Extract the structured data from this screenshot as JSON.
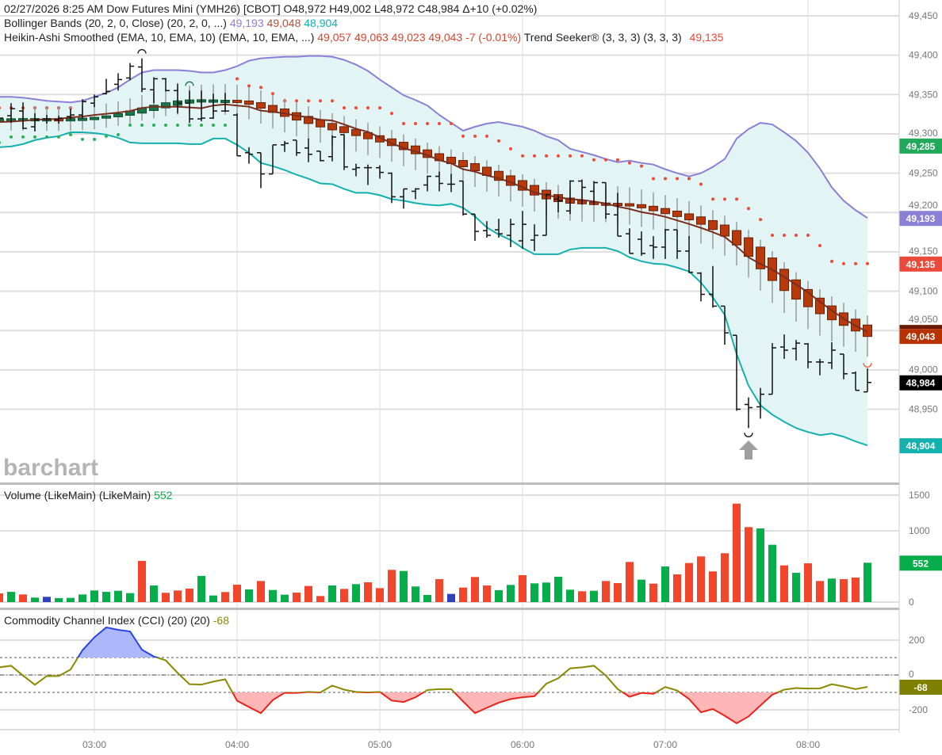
{
  "header": {
    "line1": "02/27/2026  8:25 AM Dow Futures Mini (YMH26) [CBOT] O48,972 H49,002 L48,972 C48,984 Δ+10 (+0.02%)",
    "bb_label": "Bollinger Bands (20, 2, 0, Close)  (20, 2, 0, ...)",
    "bb_upper": "49,193",
    "bb_middle": "49,048",
    "bb_lower": "48,904",
    "ha_label": "Heikin-Ashi Smoothed (EMA, 10, EMA, 10)  (EMA, 10, EMA, ...)",
    "ha_values": "49,057 49,063 49,023 49,043 -7 (-0.01%)",
    "ts_label": "Trend Seeker® (3, 3, 3)  (3, 3, 3)",
    "ts_value": "49,135"
  },
  "volume_header": {
    "label": "Volume (LikeMain)  (LikeMain)",
    "value": "552"
  },
  "cci_header": {
    "label": "Commodity Channel Index (CCI) (20)  (20)",
    "value": "-68"
  },
  "watermark": "barchart",
  "colors": {
    "bb_upper": "#8b7fd6",
    "bb_middle": "#7a2e1e",
    "bb_lower": "#14b0ad",
    "bb_fill": "#e3f4f4",
    "ha_up": "#17784a",
    "ha_down": "#b83a0c",
    "ts_up": "#28b35a",
    "ts_down": "#ef4a36",
    "vol_up": "#08ad4b",
    "vol_down": "#f1452c",
    "vol_flat": "#2e43b8",
    "cci_line": "#8a8a00",
    "cci_over": "#2a44e6",
    "cci_over_fill": "#adb8fa",
    "cci_under": "#e8231d",
    "cci_under_fill": "#ffb6b6"
  },
  "chart_data": [
    {
      "type": "ohlc",
      "title": "Dow Futures Mini (YMH26) [CBOT]",
      "interval": "5 min",
      "x_start": "02:20",
      "x_end": "08:25",
      "x_ticks": [
        "03:00",
        "04:00",
        "05:00",
        "06:00",
        "07:00",
        "08:00"
      ],
      "y_ticks": [
        "49,450",
        "49,400",
        "49,350",
        "49,300",
        "49,250",
        "49,200",
        "49,150",
        "49,100",
        "49,050",
        "49,000",
        "48,950"
      ],
      "ylim": [
        48900,
        49450
      ],
      "ohlc": [
        [
          49318,
          49328,
          49310,
          49320
        ],
        [
          49323,
          49339,
          49314,
          49332
        ],
        [
          49329,
          49340,
          49306,
          49307
        ],
        [
          49309,
          49326,
          49303,
          49318
        ],
        [
          49319,
          49324,
          49313,
          49319
        ],
        [
          49318,
          49323,
          49313,
          49320
        ],
        [
          49322,
          49332,
          49318,
          49324
        ],
        [
          49324,
          49344,
          49319,
          49341
        ],
        [
          49339,
          49350,
          49334,
          49347
        ],
        [
          49351,
          49370,
          49350,
          49354
        ],
        [
          49363,
          49377,
          49355,
          49369
        ],
        [
          49371,
          49390,
          49368,
          49386
        ],
        [
          49385,
          49396,
          49353,
          49357
        ],
        [
          49356,
          49372,
          49339,
          49370
        ],
        [
          49370,
          49371,
          49354,
          49355
        ],
        [
          49355,
          49364,
          49326,
          49339
        ],
        [
          49339,
          49355,
          49314,
          49319
        ],
        [
          49319,
          49355,
          49316,
          49320
        ],
        [
          49320,
          49351,
          49319,
          49329
        ],
        [
          49329,
          49352,
          49328,
          49329
        ],
        [
          49324,
          49326,
          49272,
          49272
        ],
        [
          49276,
          49283,
          49262,
          49274
        ],
        [
          49276,
          49276,
          49231,
          49249
        ],
        [
          49249,
          49286,
          49249,
          49286
        ],
        [
          49286,
          49291,
          49277,
          49288
        ],
        [
          49292,
          49292,
          49272,
          49276
        ],
        [
          49282,
          49294,
          49264,
          49274
        ],
        [
          49278,
          49278,
          49265,
          49266
        ],
        [
          49271,
          49298,
          49265,
          49296
        ],
        [
          49299,
          49299,
          49254,
          49258
        ],
        [
          49255,
          49262,
          49246,
          49257
        ],
        [
          49257,
          49261,
          49235,
          49257
        ],
        [
          49257,
          49260,
          49243,
          49251
        ],
        [
          49250,
          49251,
          49212,
          49220
        ],
        [
          49220,
          49230,
          49205,
          49230
        ],
        [
          49227,
          49231,
          49217,
          49230
        ],
        [
          49235,
          49247,
          49227,
          49246
        ],
        [
          49246,
          49252,
          49227,
          49237
        ],
        [
          49236,
          49249,
          49226,
          49236
        ],
        [
          49240,
          49240,
          49196,
          49198
        ],
        [
          49198,
          49198,
          49164,
          49176
        ],
        [
          49177,
          49189,
          49168,
          49171
        ],
        [
          49178,
          49192,
          49168,
          49173
        ],
        [
          49171,
          49192,
          49156,
          49185
        ],
        [
          49164,
          49202,
          49154,
          49185
        ],
        [
          49165,
          49185,
          49151,
          49171
        ],
        [
          49171,
          49224,
          49171,
          49223
        ],
        [
          49217,
          49222,
          49200,
          49215
        ],
        [
          49202,
          49241,
          49198,
          49240
        ],
        [
          49240,
          49242,
          49210,
          49232
        ],
        [
          49227,
          49240,
          49210,
          49238
        ],
        [
          49238,
          49238,
          49192,
          49198
        ],
        [
          49197,
          49225,
          49170,
          49170
        ],
        [
          49173,
          49180,
          49148,
          49148
        ],
        [
          49166,
          49176,
          49145,
          49148
        ],
        [
          49158,
          49170,
          49141,
          49156
        ],
        [
          49156,
          49179,
          49141,
          49178
        ],
        [
          49178,
          49178,
          49141,
          49151
        ],
        [
          49151,
          49170,
          49123,
          49124
        ],
        [
          49123,
          49124,
          49087,
          49096
        ],
        [
          49096,
          49132,
          49079,
          49081
        ],
        [
          49081,
          49081,
          49032,
          49047
        ],
        [
          49044,
          49044,
          48948,
          48950
        ],
        [
          48956,
          48965,
          48926,
          48952
        ],
        [
          48953,
          48977,
          48938,
          48969
        ],
        [
          48969,
          49034,
          48969,
          49028
        ],
        [
          49029,
          49045,
          49014,
          49025
        ],
        [
          49027,
          49038,
          49012,
          49034
        ],
        [
          49033,
          49034,
          49002,
          49010
        ],
        [
          49010,
          49014,
          48993,
          49010
        ],
        [
          49009,
          49035,
          49001,
          49025
        ],
        [
          49020,
          49020,
          48988,
          48995
        ],
        [
          48996,
          48998,
          48974,
          48974
        ],
        [
          48972,
          49002,
          48972,
          48984
        ]
      ],
      "bollinger_upper": [
        49347,
        49347,
        49346,
        49344,
        49342,
        49341,
        49340,
        49342,
        49347,
        49352,
        49359,
        49369,
        49378,
        49381,
        49381,
        49381,
        49380,
        49378,
        49378,
        49381,
        49386,
        49393,
        49396,
        49397,
        49398,
        49398,
        49399,
        49399,
        49398,
        49394,
        49388,
        49380,
        49369,
        49359,
        49349,
        49343,
        49336,
        49324,
        49314,
        49304,
        49309,
        49313,
        49315,
        49312,
        49309,
        49304,
        49297,
        49292,
        49281,
        49277,
        49273,
        49268,
        49264,
        49266,
        49263,
        49261,
        49255,
        49250,
        49246,
        49250,
        49258,
        49268,
        49294,
        49306,
        49314,
        49312,
        49302,
        49291,
        49276,
        49256,
        49232,
        49215,
        49203,
        49193
      ],
      "bollinger_lower": [
        49283,
        49284,
        49287,
        49292,
        49295,
        49297,
        49302,
        49302,
        49301,
        49299,
        49295,
        49289,
        49288,
        49288,
        49288,
        49288,
        49287,
        49287,
        49294,
        49294,
        49286,
        49276,
        49263,
        49259,
        49254,
        49248,
        49243,
        49237,
        49236,
        49230,
        49225,
        49225,
        49222,
        49217,
        49215,
        49212,
        49210,
        49209,
        49211,
        49206,
        49195,
        49181,
        49172,
        49165,
        49155,
        49147,
        49147,
        49147,
        49153,
        49155,
        49155,
        49155,
        49151,
        49143,
        49138,
        49135,
        49134,
        49130,
        49125,
        49111,
        49092,
        49070,
        49020,
        48980,
        48955,
        48943,
        48934,
        48926,
        48921,
        48917,
        48919,
        48915,
        48909,
        48904
      ],
      "trend_seeker_down": [
        49333,
        49333,
        49333,
        49333,
        49333,
        49333,
        49333,
        null,
        null,
        null,
        null,
        null,
        null,
        null,
        null,
        null,
        null,
        null,
        null,
        null,
        49370,
        49361,
        49359,
        49351,
        49342,
        49342,
        49342,
        49342,
        49342,
        49333,
        49333,
        49333,
        49333,
        49326,
        49313,
        49313,
        49313,
        49313,
        49313,
        49297,
        49297,
        49297,
        49291,
        49281,
        49272,
        49272,
        49272,
        49272,
        49272,
        49272,
        49267,
        49267,
        49267,
        49263,
        49259,
        49243,
        49243,
        49243,
        49243,
        49236,
        49217,
        49217,
        49217,
        49205,
        49191,
        49171,
        49171,
        49171,
        49171,
        49158,
        49138,
        49135,
        49135,
        49135
      ],
      "trend_seeker_up": [
        49289,
        49296,
        49296,
        49296,
        49296,
        49296,
        49299,
        49293,
        49293,
        49297,
        49299,
        49311,
        49311,
        49311,
        49311,
        49311,
        49311,
        49311,
        49311,
        49311,
        null,
        null,
        null,
        null,
        null,
        null,
        null,
        null,
        null,
        null,
        null,
        null,
        null,
        null,
        null,
        null,
        null,
        null,
        null,
        null,
        null,
        null,
        null,
        null,
        null,
        null,
        null,
        null,
        null,
        null,
        null,
        null,
        null,
        null,
        null,
        null,
        null,
        null,
        null,
        null,
        null,
        null,
        null,
        null,
        null,
        null,
        null,
        null,
        null,
        null,
        null,
        null,
        null,
        null
      ],
      "last_value_badges": [
        {
          "value": "49,285",
          "price": 49285,
          "color": "#21a95a"
        },
        {
          "value": "49,193",
          "price": 49193,
          "color": "#8b7fd6"
        },
        {
          "value": "49,135",
          "price": 49135,
          "color": "#ea4a3a"
        },
        {
          "value": "49,043",
          "price": 49043,
          "color": "#b83200"
        },
        {
          "value": "48,984",
          "price": 48984,
          "color": "#000000"
        },
        {
          "value": "48,904",
          "price": 48904,
          "color": "#14b0ad"
        }
      ],
      "markers": {
        "swing_high_bars": [
          12,
          16
        ],
        "swing_low_bars": [
          63,
          73
        ],
        "arrow_up_bar": 63
      }
    },
    {
      "type": "bar",
      "title": "Volume (LikeMain)",
      "y_ticks": [
        "1500",
        "1000",
        "0"
      ],
      "ylim": [
        0,
        1500
      ],
      "values": [
        122,
        144,
        107,
        63,
        74,
        56,
        59,
        107,
        163,
        144,
        159,
        126,
        578,
        233,
        130,
        163,
        189,
        367,
        93,
        141,
        244,
        178,
        296,
        170,
        104,
        133,
        226,
        85,
        233,
        185,
        252,
        278,
        196,
        452,
        437,
        219,
        100,
        322,
        115,
        204,
        352,
        233,
        167,
        241,
        378,
        263,
        274,
        356,
        174,
        152,
        159,
        296,
        267,
        563,
        315,
        259,
        500,
        389,
        548,
        641,
        430,
        685,
        1381,
        1052,
        1033,
        804,
        515,
        411,
        544,
        296,
        330,
        322,
        344,
        552
      ],
      "directions": [
        "r",
        "g",
        "r",
        "g",
        "b",
        "g",
        "g",
        "g",
        "g",
        "g",
        "g",
        "g",
        "r",
        "g",
        "r",
        "r",
        "r",
        "g",
        "g",
        "r",
        "r",
        "g",
        "r",
        "g",
        "g",
        "r",
        "r",
        "r",
        "g",
        "r",
        "g",
        "r",
        "r",
        "r",
        "g",
        "g",
        "g",
        "r",
        "b",
        "r",
        "r",
        "r",
        "g",
        "g",
        "r",
        "g",
        "g",
        "g",
        "g",
        "r",
        "g",
        "r",
        "r",
        "r",
        "g",
        "r",
        "g",
        "r",
        "r",
        "r",
        "r",
        "r",
        "r",
        "r",
        "g",
        "g",
        "r",
        "g",
        "r",
        "r",
        "g",
        "r",
        "r",
        "g"
      ],
      "last_badge": "552"
    },
    {
      "type": "line",
      "title": "Commodity Channel Index (CCI) (20)",
      "y_ticks": [
        "200",
        "0",
        "-200"
      ],
      "ylim": [
        -310,
        350
      ],
      "levels": [
        100,
        0,
        -100
      ],
      "values": [
        44,
        53,
        -3,
        -56,
        -6,
        -6,
        31,
        142,
        216,
        273,
        259,
        250,
        145,
        106,
        84,
        12,
        -53,
        -55,
        -38,
        -25,
        -148,
        -184,
        -219,
        -144,
        -102,
        -103,
        -97,
        -100,
        -61,
        -84,
        -97,
        -100,
        -97,
        -147,
        -155,
        -128,
        -86,
        -81,
        -81,
        -152,
        -219,
        -188,
        -159,
        -138,
        -128,
        -122,
        -50,
        -19,
        38,
        44,
        53,
        -3,
        -81,
        -125,
        -103,
        -108,
        -69,
        -89,
        -138,
        -214,
        -195,
        -234,
        -277,
        -238,
        -175,
        -113,
        -84,
        -75,
        -78,
        -77,
        -53,
        -66,
        -81,
        -68
      ],
      "last_badge": "-68"
    }
  ]
}
